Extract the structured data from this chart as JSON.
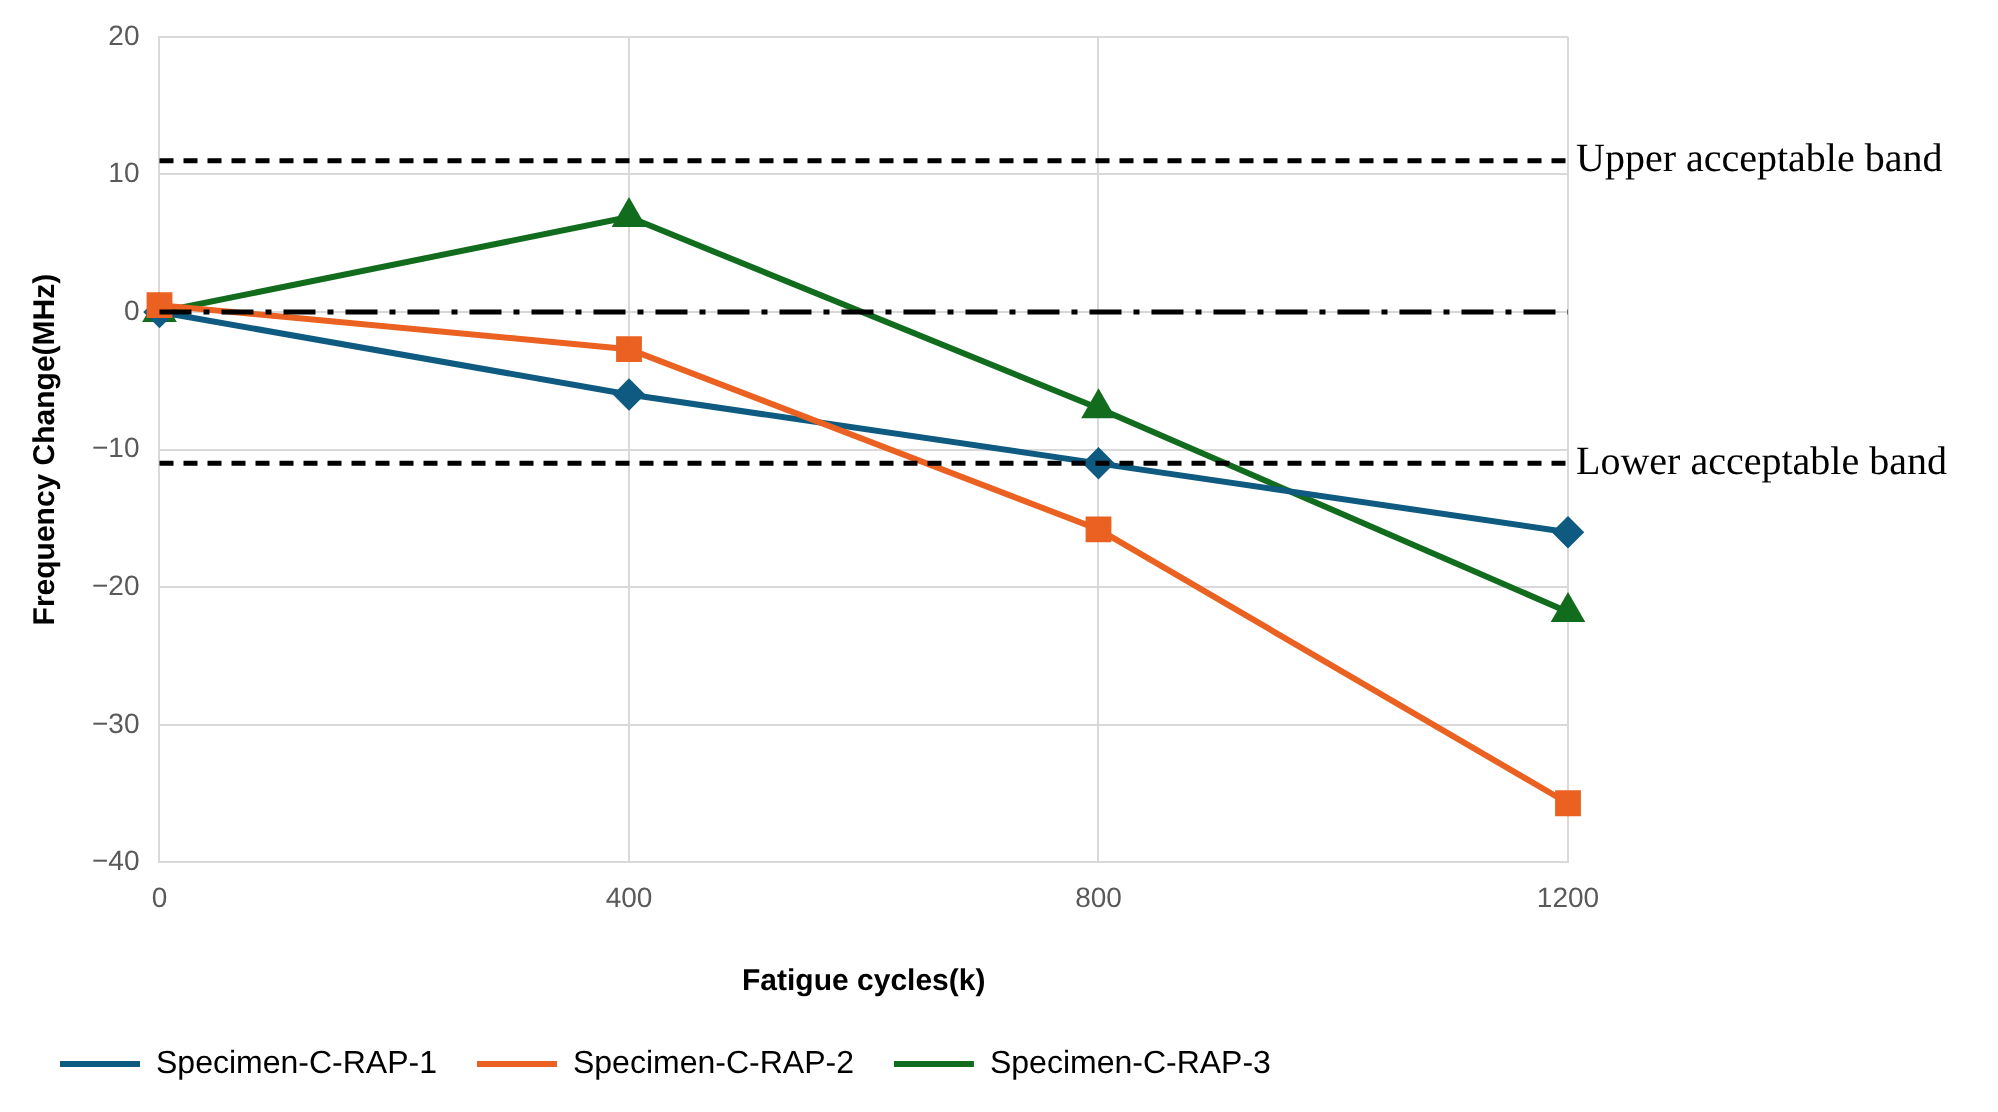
{
  "chart_data": {
    "type": "line",
    "xlabel": "Fatigue cycles(k)",
    "ylabel": "Frequency Change(MHz)",
    "x": [
      0,
      400,
      800,
      1200
    ],
    "xlim": [
      0,
      1200
    ],
    "xticks": [
      0,
      400,
      800,
      1200
    ],
    "ylim": [
      -40,
      20
    ],
    "yticks": [
      -40,
      -30,
      -20,
      -10,
      0,
      10,
      20
    ],
    "series": [
      {
        "name": "Specimen-C-RAP-1",
        "color": "#0e5a80",
        "marker": "diamond",
        "values": [
          0,
          -6,
          -11,
          -16
        ]
      },
      {
        "name": "Specimen-C-RAP-2",
        "color": "#ea6121",
        "marker": "square",
        "values": [
          0.5,
          -2.7,
          -15.8,
          -35.7
        ]
      },
      {
        "name": "Specimen-C-RAP-3",
        "color": "#126c1e",
        "marker": "triangle",
        "values": [
          0,
          6.9,
          -7,
          -21.8
        ]
      }
    ],
    "ref_lines": [
      {
        "axis": "y",
        "value": 11,
        "label": "Upper acceptable band",
        "color": "#000000",
        "line_style": "dashed"
      },
      {
        "axis": "y",
        "value": 0,
        "label": null,
        "color": "#000000",
        "line_style": "dashdot"
      },
      {
        "axis": "y",
        "value": -11,
        "label": "Lower acceptable band",
        "color": "#000000",
        "line_style": "dashed"
      }
    ],
    "grid": true,
    "legend": "bottom",
    "line_style": "solid"
  }
}
